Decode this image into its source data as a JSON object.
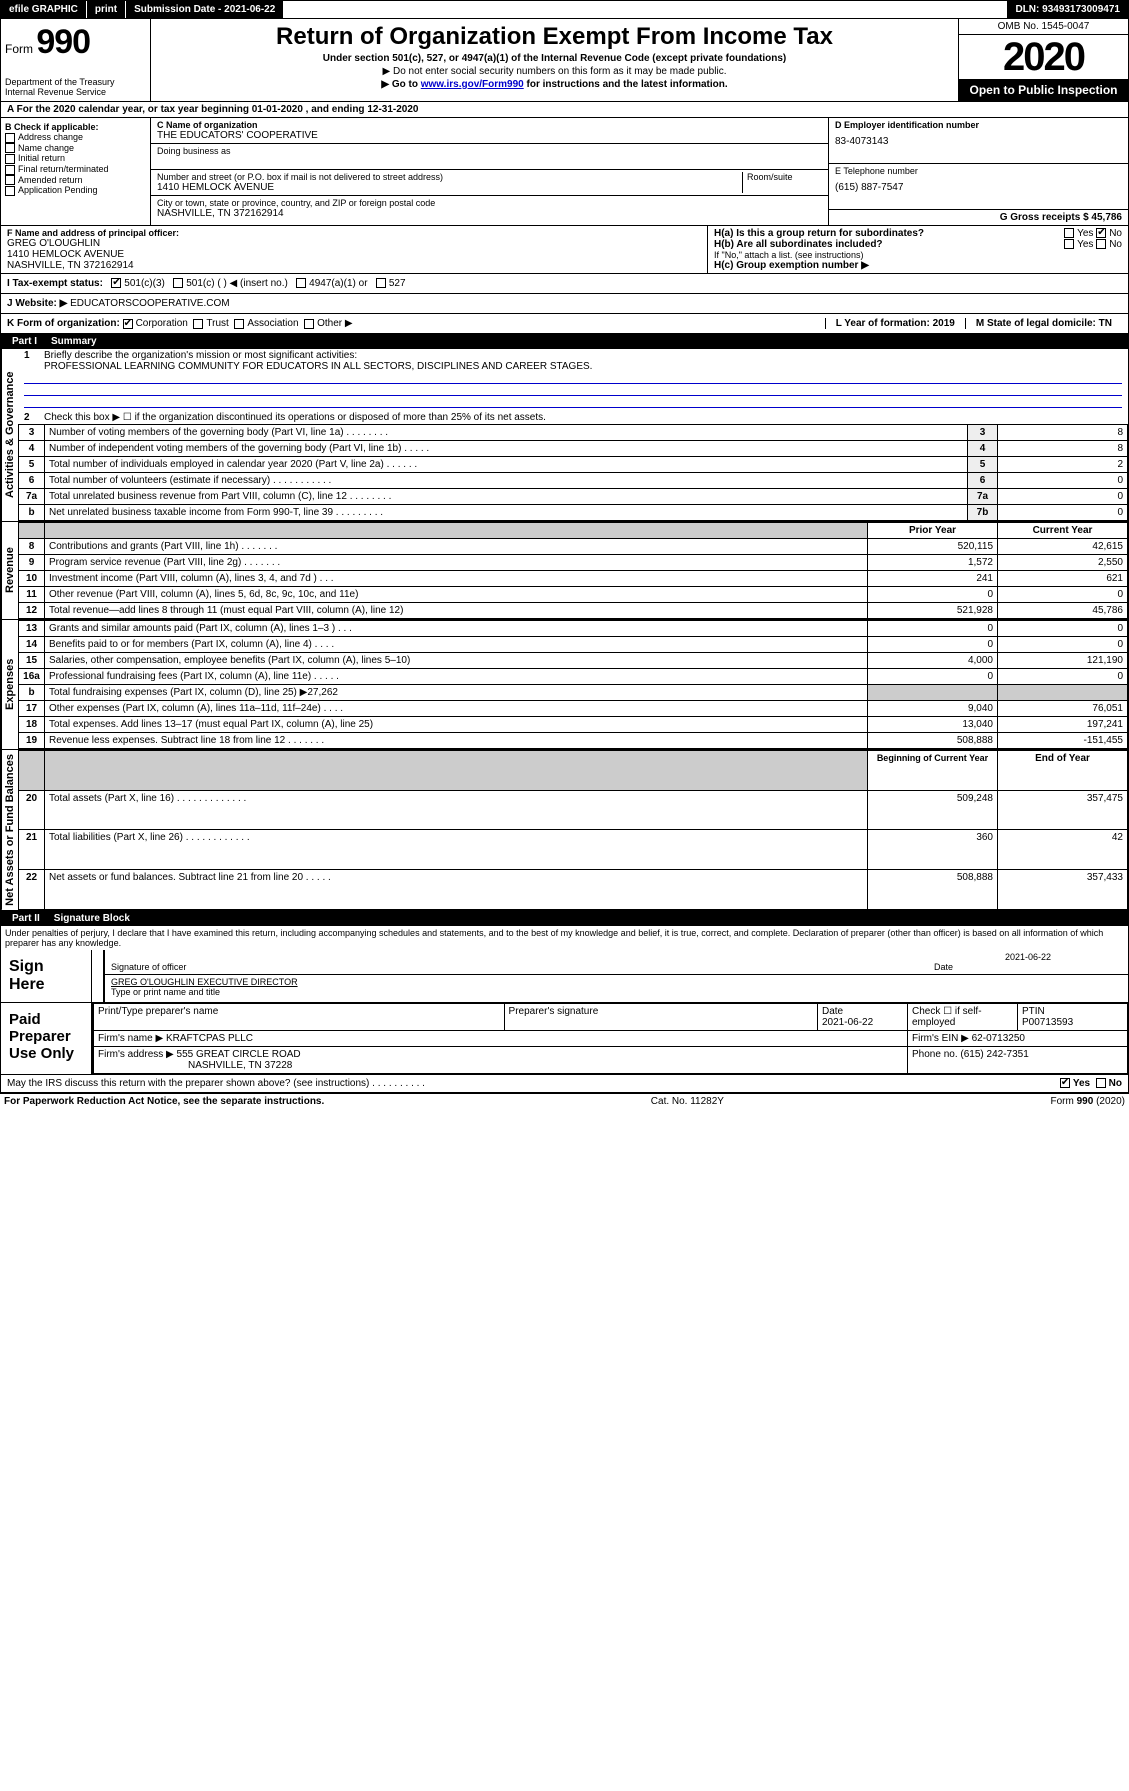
{
  "topbar": {
    "efile": "efile GRAPHIC",
    "print": "print",
    "subdate_label": "Submission Date - 2021-06-22",
    "dln": "DLN: 93493173009471"
  },
  "header": {
    "form_label": "Form",
    "form_no": "990",
    "dept1": "Department of the Treasury",
    "dept2": "Internal Revenue Service",
    "title": "Return of Organization Exempt From Income Tax",
    "sub": "Under section 501(c), 527, or 4947(a)(1) of the Internal Revenue Code (except private foundations)",
    "note1": "▶ Do not enter social security numbers on this form as it may be made public.",
    "note2_pre": "▶ Go to ",
    "note2_link": "www.irs.gov/Form990",
    "note2_post": " for instructions and the latest information.",
    "omb": "OMB No. 1545-0047",
    "year": "2020",
    "open": "Open to Public Inspection"
  },
  "lineA": "A   For the 2020 calendar year, or tax year beginning 01-01-2020     , and ending 12-31-2020",
  "boxB": {
    "title": "B Check if applicable:",
    "items": [
      "Address change",
      "Name change",
      "Initial return",
      "Final return/terminated",
      "Amended return",
      "Application Pending"
    ]
  },
  "boxC": {
    "name_label": "C Name of organization",
    "name": "THE EDUCATORS' COOPERATIVE",
    "dba_label": "Doing business as",
    "addr_label": "Number and street (or P.O. box if mail is not delivered to street address)",
    "room_label": "Room/suite",
    "addr": "1410 HEMLOCK AVENUE",
    "city_label": "City or town, state or province, country, and ZIP or foreign postal code",
    "city": "NASHVILLE, TN  372162914"
  },
  "boxD": {
    "label": "D Employer identification number",
    "val": "83-4073143"
  },
  "boxE": {
    "label": "E Telephone number",
    "val": "(615) 887-7547"
  },
  "boxG": {
    "label": "G Gross receipts $ 45,786"
  },
  "boxF": {
    "label": "F  Name and address of principal officer:",
    "name": "GREG O'LOUGHLIN",
    "addr1": "1410 HEMLOCK AVENUE",
    "addr2": "NASHVILLE, TN  372162914"
  },
  "boxH": {
    "a": "H(a)  Is this a group return for subordinates?",
    "b": "H(b)  Are all subordinates included?",
    "bnote": "If \"No,\" attach a list. (see instructions)",
    "c": "H(c)  Group exemption number ▶",
    "yes": "Yes",
    "no": "No"
  },
  "boxI": {
    "label": "I    Tax-exempt status:",
    "opts": [
      "501(c)(3)",
      "501(c) (   ) ◀ (insert no.)",
      "4947(a)(1) or",
      "527"
    ]
  },
  "boxJ": {
    "label": "J   Website: ▶",
    "val": "  EDUCATORSCOOPERATIVE.COM"
  },
  "boxK": {
    "label": "K Form of organization:",
    "opts": [
      "Corporation",
      "Trust",
      "Association",
      "Other ▶"
    ]
  },
  "boxL": {
    "label": "L Year of formation: 2019"
  },
  "boxM": {
    "label": "M State of legal domicile: TN"
  },
  "part1": {
    "num": "Part I",
    "title": "Summary"
  },
  "summary": {
    "side_gov": "Activities & Governance",
    "side_rev": "Revenue",
    "side_exp": "Expenses",
    "side_net": "Net Assets or Fund Balances",
    "l1": "Briefly describe the organization's mission or most significant activities:",
    "l1val": "PROFESSIONAL LEARNING COMMUNITY FOR EDUCATORS IN ALL SECTORS, DISCIPLINES AND CAREER STAGES.",
    "l2": "Check this box ▶ ☐  if the organization discontinued its operations or disposed of more than 25% of its net assets.",
    "rows_gov": [
      {
        "n": "3",
        "t": "Number of voting members of the governing body (Part VI, line 1a)  .    .    .    .    .    .    .    .",
        "box": "3",
        "v": "8"
      },
      {
        "n": "4",
        "t": "Number of independent voting members of the governing body (Part VI, line 1b)  .    .    .    .    .",
        "box": "4",
        "v": "8"
      },
      {
        "n": "5",
        "t": "Total number of individuals employed in calendar year 2020 (Part V, line 2a)  .    .    .    .    .    .",
        "box": "5",
        "v": "2"
      },
      {
        "n": "6",
        "t": "Total number of volunteers (estimate if necessary)  .    .    .    .    .    .    .    .    .    .    .",
        "box": "6",
        "v": "0"
      },
      {
        "n": "7a",
        "t": "Total unrelated business revenue from Part VIII, column (C), line 12  .    .    .    .    .    .    .    .",
        "box": "7a",
        "v": "0"
      },
      {
        "n": "b",
        "t": "Net unrelated business taxable income from Form 990-T, line 39  .    .    .    .    .    .    .    .    .",
        "box": "7b",
        "v": "0"
      }
    ],
    "hdr_prior": "Prior Year",
    "hdr_curr": "Current Year",
    "rows_rev": [
      {
        "n": "8",
        "t": "Contributions and grants (Part VIII, line 1h)  .    .    .    .    .    .    .",
        "p": "520,115",
        "c": "42,615"
      },
      {
        "n": "9",
        "t": "Program service revenue (Part VIII, line 2g)  .    .    .    .    .    .    .",
        "p": "1,572",
        "c": "2,550"
      },
      {
        "n": "10",
        "t": "Investment income (Part VIII, column (A), lines 3, 4, and 7d )  .    .    .",
        "p": "241",
        "c": "621"
      },
      {
        "n": "11",
        "t": "Other revenue (Part VIII, column (A), lines 5, 6d, 8c, 9c, 10c, and 11e)",
        "p": "0",
        "c": "0"
      },
      {
        "n": "12",
        "t": "Total revenue—add lines 8 through 11 (must equal Part VIII, column (A), line 12)",
        "p": "521,928",
        "c": "45,786"
      }
    ],
    "rows_exp": [
      {
        "n": "13",
        "t": "Grants and similar amounts paid (Part IX, column (A), lines 1–3 )  .    .    .",
        "p": "0",
        "c": "0"
      },
      {
        "n": "14",
        "t": "Benefits paid to or for members (Part IX, column (A), line 4)  .    .    .    .",
        "p": "0",
        "c": "0"
      },
      {
        "n": "15",
        "t": "Salaries, other compensation, employee benefits (Part IX, column (A), lines 5–10)",
        "p": "4,000",
        "c": "121,190"
      },
      {
        "n": "16a",
        "t": "Professional fundraising fees (Part IX, column (A), line 11e)  .    .    .    .    .",
        "p": "0",
        "c": "0"
      },
      {
        "n": "b",
        "t": "Total fundraising expenses (Part IX, column (D), line 25) ▶27,262",
        "p": "",
        "c": "",
        "gray": true
      },
      {
        "n": "17",
        "t": "Other expenses (Part IX, column (A), lines 11a–11d, 11f–24e)  .    .    .    .",
        "p": "9,040",
        "c": "76,051"
      },
      {
        "n": "18",
        "t": "Total expenses. Add lines 13–17 (must equal Part IX, column (A), line 25)",
        "p": "13,040",
        "c": "197,241"
      },
      {
        "n": "19",
        "t": "Revenue less expenses. Subtract line 18 from line 12  .    .    .    .    .    .    .",
        "p": "508,888",
        "c": "-151,455"
      }
    ],
    "hdr_beg": "Beginning of Current Year",
    "hdr_end": "End of Year",
    "rows_net": [
      {
        "n": "20",
        "t": "Total assets (Part X, line 16)  .    .    .    .    .    .    .    .    .    .    .    .    .",
        "p": "509,248",
        "c": "357,475"
      },
      {
        "n": "21",
        "t": "Total liabilities (Part X, line 26)  .    .    .    .    .    .    .    .    .    .    .    .",
        "p": "360",
        "c": "42"
      },
      {
        "n": "22",
        "t": "Net assets or fund balances. Subtract line 21 from line 20  .    .    .    .    .",
        "p": "508,888",
        "c": "357,433"
      }
    ]
  },
  "part2": {
    "num": "Part II",
    "title": "Signature Block"
  },
  "perjury": "Under penalties of perjury, I declare that I have examined this return, including accompanying schedules and statements, and to the best of my knowledge and belief, it is true, correct, and complete. Declaration of preparer (other than officer) is based on all information of which preparer has any knowledge.",
  "sign": {
    "here": "Sign Here",
    "sig_label": "Signature of officer",
    "date": "2021-06-22",
    "date_label": "Date",
    "name": "GREG O'LOUGHLIN  EXECUTIVE DIRECTOR",
    "name_label": "Type or print name and title"
  },
  "paid": {
    "label": "Paid Preparer Use Only",
    "h_name": "Print/Type preparer's name",
    "h_sig": "Preparer's signature",
    "h_date": "Date",
    "h_date_v": "2021-06-22",
    "h_check": "Check ☐ if self-employed",
    "h_ptin": "PTIN",
    "h_ptin_v": "P00713593",
    "firm_label": "Firm's name    ▶",
    "firm": "KRAFTCPAS PLLC",
    "ein_label": "Firm's EIN ▶",
    "ein": "62-0713250",
    "addr_label": "Firm's address ▶",
    "addr1": "555 GREAT CIRCLE ROAD",
    "addr2": "NASHVILLE, TN  37228",
    "phone_label": "Phone no.",
    "phone": "(615) 242-7351"
  },
  "discuss": "May the IRS discuss this return with the preparer shown above? (see instructions)   .    .    .    .    .    .    .    .    .    .",
  "footer": {
    "pra": "For Paperwork Reduction Act Notice, see the separate instructions.",
    "cat": "Cat. No. 11282Y",
    "form": "Form 990 (2020)"
  }
}
